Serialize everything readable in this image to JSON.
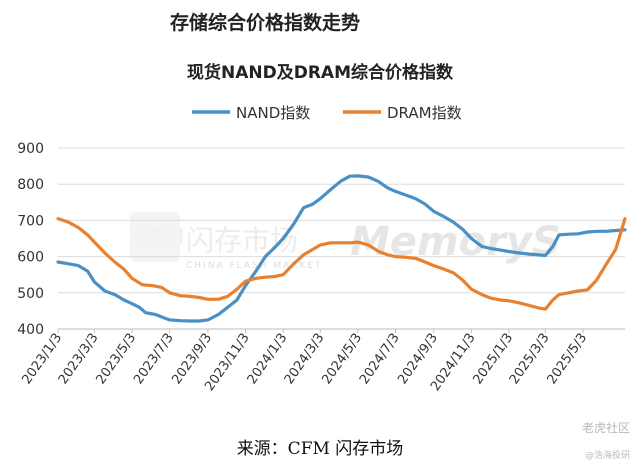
{
  "page_title": "存储综合价格指数走势",
  "source": "来源：CFM 闪存市场",
  "watermark": {
    "cfm": "CFM",
    "cn": "闪存市场",
    "en": "CHINA FLASH MARKET",
    "brand": "MemoryS"
  },
  "footer": {
    "site": "老虎社区",
    "author": "@浩海投研"
  },
  "colors": {
    "nand": "#4a90c4",
    "dram": "#e8812f"
  },
  "chart_data": {
    "type": "line",
    "title": "现货NAND及DRAM综合价格指数",
    "xlabel": "",
    "ylabel": "",
    "ylim": [
      400,
      900
    ],
    "yticks": [
      400,
      500,
      600,
      700,
      800,
      900
    ],
    "grid": true,
    "legend": "top",
    "x_tick_labels": [
      "2023/1/3",
      "2023/3/3",
      "2023/5/3",
      "2023/7/3",
      "2023/9/3",
      "2023/11/3",
      "2024/1/3",
      "2024/3/3",
      "2024/5/3",
      "2024/7/3",
      "2024/9/3",
      "2024/11/3",
      "2025/1/3",
      "2025/3/3",
      "2025/5/3"
    ],
    "x_domain": [
      "2023/1/3",
      "2025/7/10"
    ],
    "series": [
      {
        "name": "NAND指数",
        "color": "#4a90c4",
        "points": [
          [
            "2023/1/3",
            585
          ],
          [
            "2023/1/20",
            580
          ],
          [
            "2023/2/5",
            575
          ],
          [
            "2023/2/20",
            560
          ],
          [
            "2023/3/3",
            530
          ],
          [
            "2023/3/20",
            505
          ],
          [
            "2023/4/5",
            495
          ],
          [
            "2023/4/20",
            480
          ],
          [
            "2023/5/3",
            470
          ],
          [
            "2023/5/15",
            460
          ],
          [
            "2023/5/25",
            445
          ],
          [
            "2023/6/10",
            440
          ],
          [
            "2023/6/25",
            430
          ],
          [
            "2023/7/3",
            425
          ],
          [
            "2023/7/20",
            423
          ],
          [
            "2023/8/5",
            422
          ],
          [
            "2023/8/20",
            422
          ],
          [
            "2023/9/3",
            425
          ],
          [
            "2023/9/20",
            440
          ],
          [
            "2023/10/5",
            460
          ],
          [
            "2023/10/20",
            480
          ],
          [
            "2023/11/3",
            520
          ],
          [
            "2023/11/20",
            560
          ],
          [
            "2023/12/5",
            600
          ],
          [
            "2023/12/20",
            625
          ],
          [
            "2024/1/3",
            650
          ],
          [
            "2024/1/20",
            690
          ],
          [
            "2024/2/5",
            735
          ],
          [
            "2024/2/20",
            745
          ],
          [
            "2024/3/3",
            760
          ],
          [
            "2024/3/20",
            785
          ],
          [
            "2024/4/5",
            808
          ],
          [
            "2024/4/20",
            822
          ],
          [
            "2024/5/3",
            823
          ],
          [
            "2024/5/20",
            820
          ],
          [
            "2024/6/5",
            808
          ],
          [
            "2024/6/20",
            790
          ],
          [
            "2024/7/3",
            780
          ],
          [
            "2024/7/20",
            770
          ],
          [
            "2024/8/5",
            760
          ],
          [
            "2024/8/20",
            745
          ],
          [
            "2024/9/3",
            725
          ],
          [
            "2024/9/20",
            710
          ],
          [
            "2024/10/5",
            695
          ],
          [
            "2024/10/20",
            675
          ],
          [
            "2024/11/3",
            650
          ],
          [
            "2024/11/20",
            628
          ],
          [
            "2024/12/5",
            622
          ],
          [
            "2024/12/20",
            618
          ],
          [
            "2025/1/3",
            614
          ],
          [
            "2025/1/20",
            610
          ],
          [
            "2025/2/5",
            607
          ],
          [
            "2025/2/20",
            605
          ],
          [
            "2025/3/3",
            603
          ],
          [
            "2025/3/15",
            628
          ],
          [
            "2025/3/25",
            660
          ],
          [
            "2025/4/10",
            662
          ],
          [
            "2025/4/25",
            663
          ],
          [
            "2025/5/10",
            668
          ],
          [
            "2025/5/25",
            670
          ],
          [
            "2025/6/10",
            670
          ],
          [
            "2025/6/25",
            672
          ],
          [
            "2025/7/10",
            674
          ]
        ]
      },
      {
        "name": "DRAM指数",
        "color": "#e8812f",
        "points": [
          [
            "2023/1/3",
            705
          ],
          [
            "2023/1/20",
            695
          ],
          [
            "2023/2/5",
            680
          ],
          [
            "2023/2/20",
            660
          ],
          [
            "2023/3/3",
            640
          ],
          [
            "2023/3/20",
            610
          ],
          [
            "2023/4/5",
            585
          ],
          [
            "2023/4/20",
            565
          ],
          [
            "2023/5/3",
            540
          ],
          [
            "2023/5/20",
            522
          ],
          [
            "2023/6/5",
            520
          ],
          [
            "2023/6/20",
            515
          ],
          [
            "2023/7/3",
            500
          ],
          [
            "2023/7/20",
            492
          ],
          [
            "2023/8/5",
            490
          ],
          [
            "2023/8/20",
            487
          ],
          [
            "2023/9/3",
            482
          ],
          [
            "2023/9/20",
            482
          ],
          [
            "2023/10/5",
            490
          ],
          [
            "2023/10/20",
            510
          ],
          [
            "2023/11/3",
            532
          ],
          [
            "2023/11/20",
            540
          ],
          [
            "2023/12/5",
            543
          ],
          [
            "2023/12/20",
            545
          ],
          [
            "2024/1/3",
            550
          ],
          [
            "2024/1/20",
            580
          ],
          [
            "2024/2/5",
            605
          ],
          [
            "2024/2/20",
            620
          ],
          [
            "2024/3/3",
            632
          ],
          [
            "2024/3/20",
            638
          ],
          [
            "2024/4/5",
            638
          ],
          [
            "2024/4/20",
            638
          ],
          [
            "2024/5/3",
            640
          ],
          [
            "2024/5/20",
            632
          ],
          [
            "2024/6/5",
            615
          ],
          [
            "2024/6/20",
            605
          ],
          [
            "2024/7/3",
            600
          ],
          [
            "2024/7/20",
            598
          ],
          [
            "2024/8/5",
            595
          ],
          [
            "2024/8/20",
            585
          ],
          [
            "2024/9/3",
            575
          ],
          [
            "2024/9/20",
            565
          ],
          [
            "2024/10/5",
            555
          ],
          [
            "2024/10/20",
            535
          ],
          [
            "2024/11/3",
            510
          ],
          [
            "2024/11/20",
            495
          ],
          [
            "2024/12/5",
            485
          ],
          [
            "2024/12/20",
            480
          ],
          [
            "2025/1/3",
            478
          ],
          [
            "2025/1/20",
            472
          ],
          [
            "2025/2/5",
            465
          ],
          [
            "2025/2/20",
            458
          ],
          [
            "2025/3/3",
            455
          ],
          [
            "2025/3/15",
            480
          ],
          [
            "2025/3/25",
            495
          ],
          [
            "2025/4/10",
            500
          ],
          [
            "2025/4/25",
            505
          ],
          [
            "2025/5/10",
            508
          ],
          [
            "2025/5/25",
            535
          ],
          [
            "2025/6/10",
            580
          ],
          [
            "2025/6/25",
            620
          ],
          [
            "2025/7/10",
            705
          ]
        ]
      }
    ]
  }
}
